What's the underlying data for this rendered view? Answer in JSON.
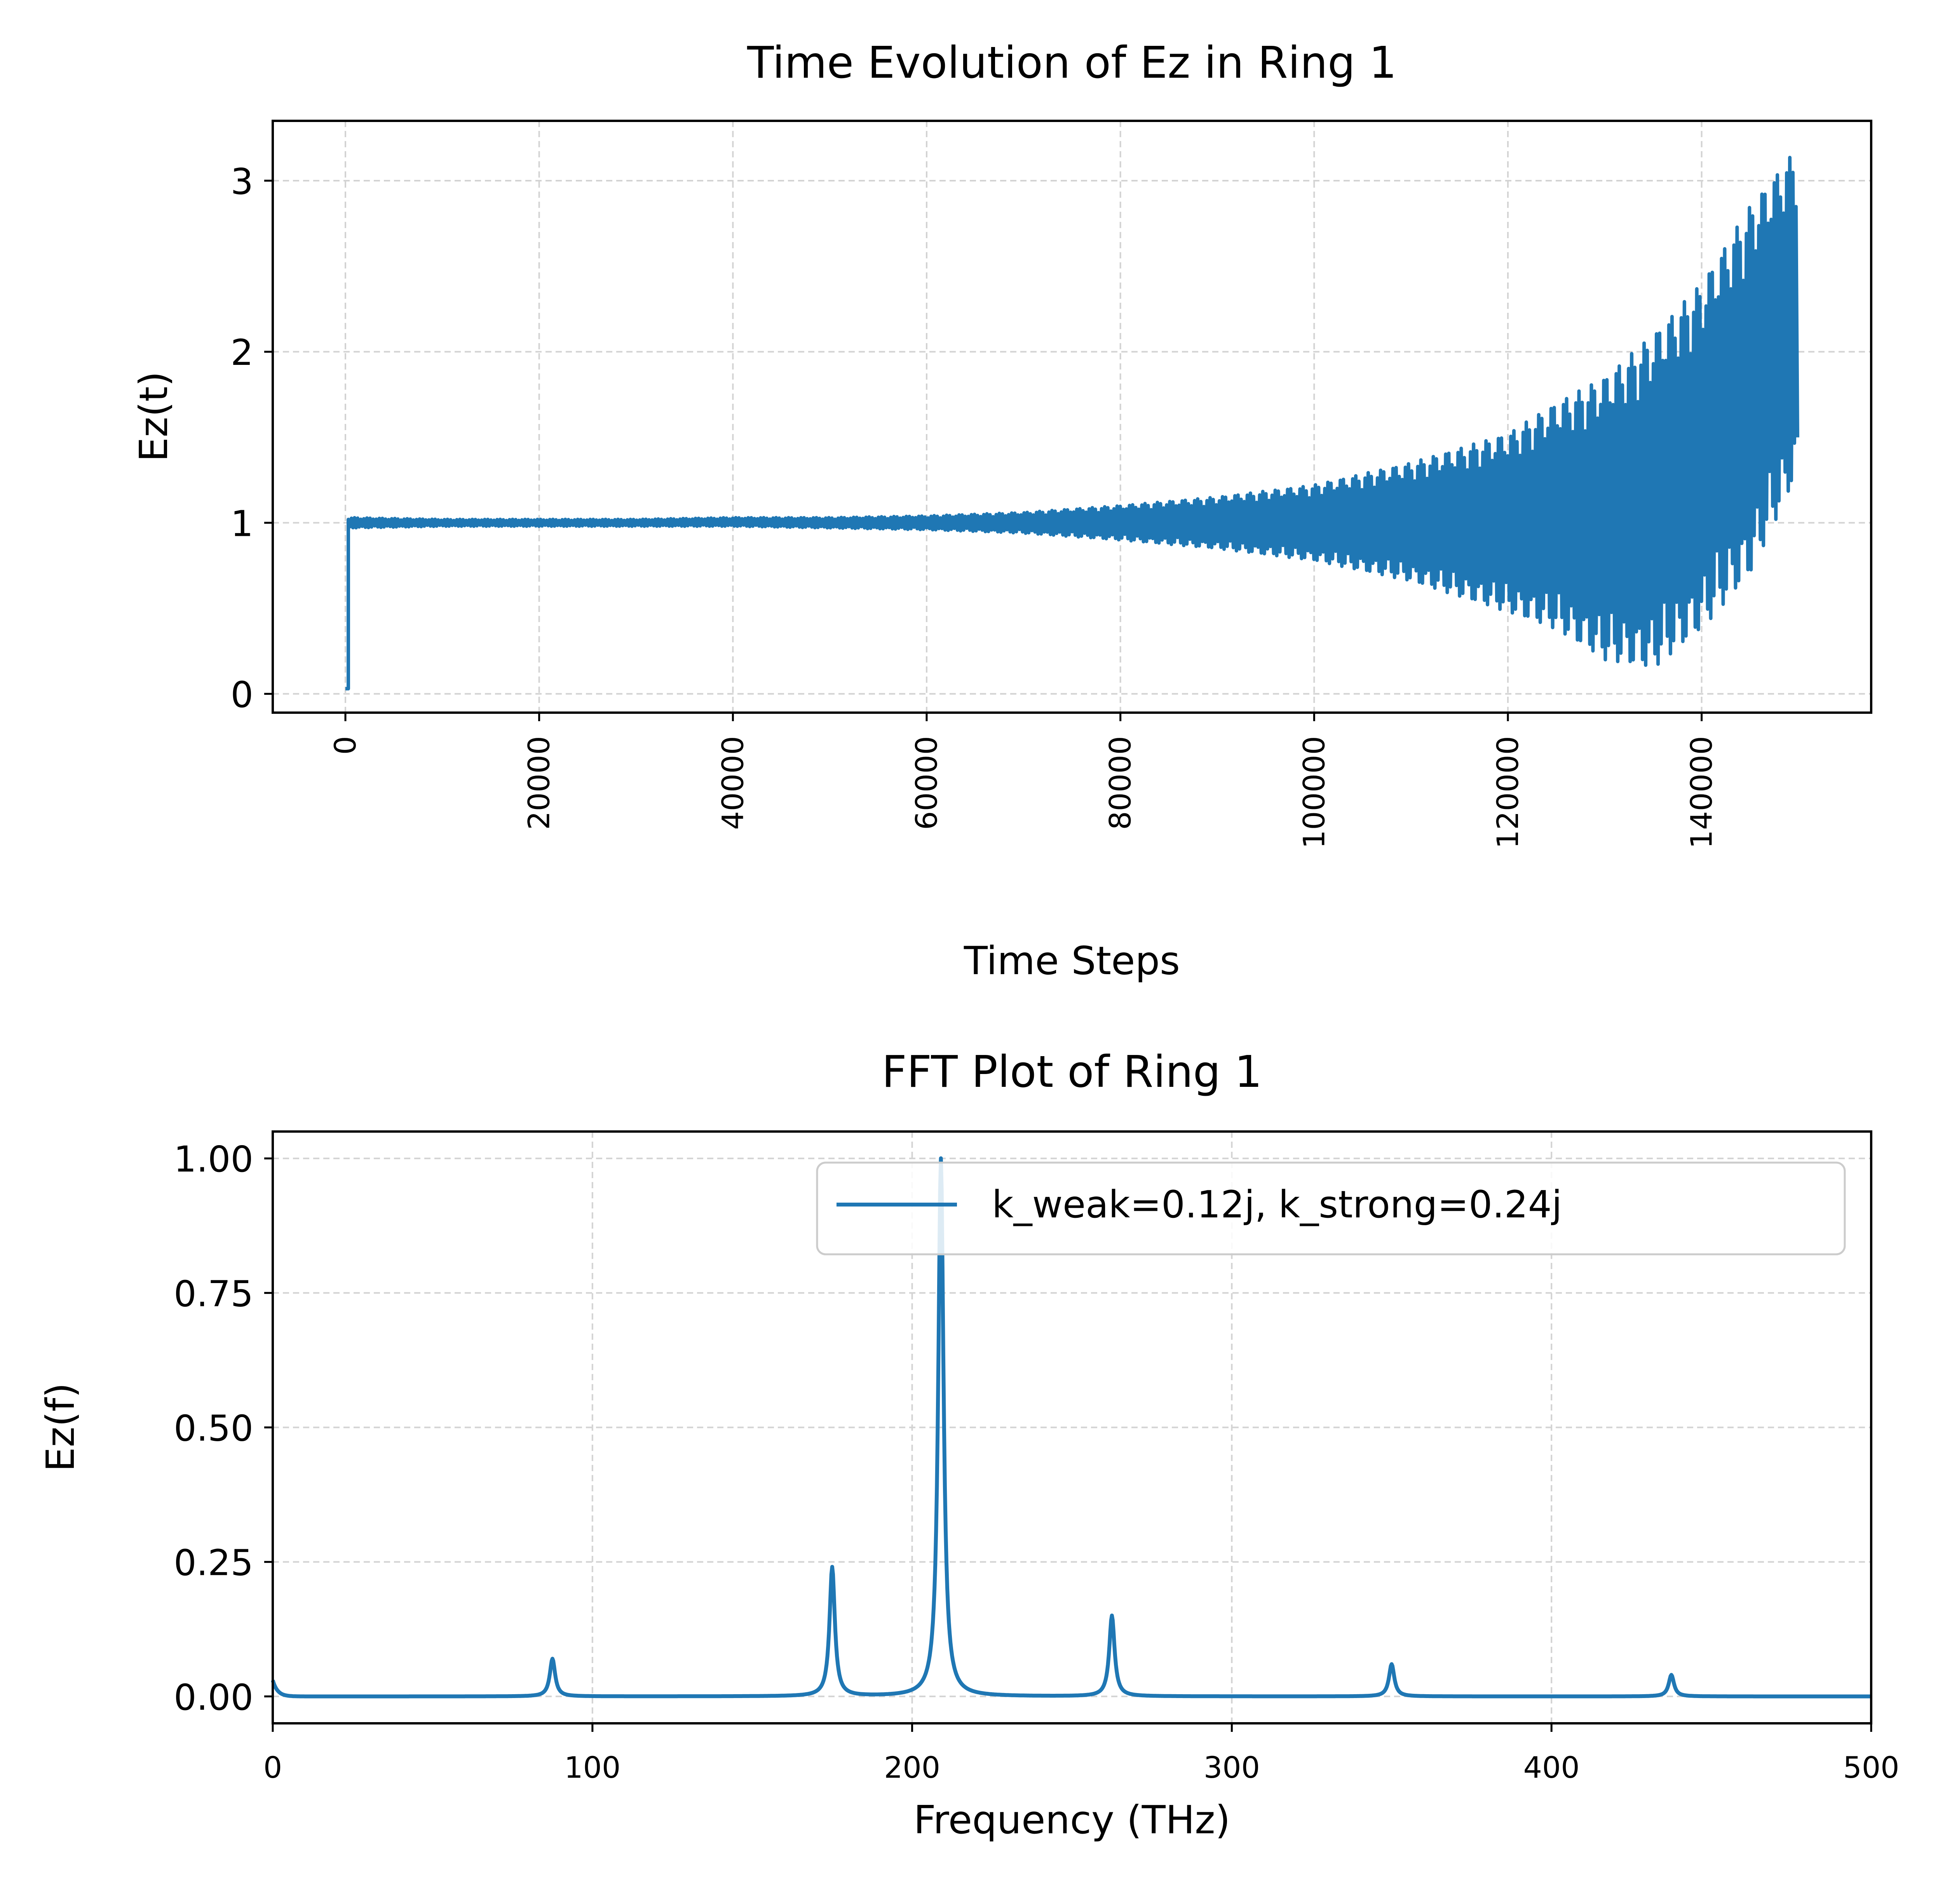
{
  "colors": {
    "series": "#1f77b4",
    "grid": "#d3d3d3",
    "axes": "#000000",
    "background": "#ffffff"
  },
  "chart_data": [
    {
      "type": "line",
      "title": "Time Evolution of Ez in Ring 1",
      "xlabel": "Time Steps",
      "ylabel": "Ez(t)",
      "xlim": [
        -7500,
        157500
      ],
      "ylim": [
        -0.11,
        3.35
      ],
      "xticks": [
        0,
        20000,
        40000,
        60000,
        80000,
        100000,
        120000,
        140000
      ],
      "xtick_labels": [
        "0",
        "20000",
        "40000",
        "60000",
        "80000",
        "100000",
        "120000",
        "140000"
      ],
      "xtick_rotation": "vertical",
      "yticks": [
        0,
        1,
        2,
        3
      ],
      "ytick_labels": [
        "0",
        "1",
        "2",
        "3"
      ],
      "grid": true,
      "series": [
        {
          "color": "#1f77b4",
          "style": "oscillating signal; lower and upper envelope given at sampled time steps",
          "x": [
            0,
            300,
            10000,
            20000,
            30000,
            40000,
            50000,
            60000,
            70000,
            80000,
            90000,
            100000,
            110000,
            120000,
            125000,
            130000,
            135000,
            140000,
            145000,
            150000
          ],
          "envelope_low": [
            0.03,
            0.97,
            0.98,
            0.98,
            0.98,
            0.98,
            0.97,
            0.96,
            0.94,
            0.9,
            0.85,
            0.78,
            0.66,
            0.48,
            0.38,
            0.2,
            0.15,
            0.38,
            0.7,
            1.3
          ],
          "envelope_high": [
            0.03,
            1.03,
            1.02,
            1.02,
            1.02,
            1.03,
            1.03,
            1.04,
            1.06,
            1.1,
            1.15,
            1.22,
            1.35,
            1.52,
            1.7,
            1.85,
            2.1,
            2.4,
            2.85,
            3.2
          ]
        }
      ]
    },
    {
      "type": "line",
      "title": "FFT Plot of Ring 1",
      "xlabel": "Frequency (THz)",
      "ylabel": "Ez(f)",
      "xlim": [
        0,
        500
      ],
      "ylim": [
        -0.05,
        1.05
      ],
      "xticks": [
        0,
        100,
        200,
        300,
        400,
        500
      ],
      "xtick_labels": [
        "0",
        "100",
        "200",
        "300",
        "400",
        "500"
      ],
      "yticks": [
        0.0,
        0.25,
        0.5,
        0.75,
        1.0
      ],
      "ytick_labels": [
        "0.00",
        "0.25",
        "0.50",
        "0.75",
        "1.00"
      ],
      "grid": true,
      "legend": {
        "entries": [
          "k_weak=0.12j, k_strong=0.24j"
        ],
        "placement": "upper right"
      },
      "series": [
        {
          "name": "k_weak=0.12j, k_strong=0.24j",
          "color": "#1f77b4",
          "baseline": 0.0,
          "edge_value_at_0": 0.03,
          "peaks": [
            {
              "x": 87.5,
              "y": 0.07
            },
            {
              "x": 175.0,
              "y": 0.24
            },
            {
              "x": 209.0,
              "y": 1.0
            },
            {
              "x": 262.5,
              "y": 0.15
            },
            {
              "x": 350.0,
              "y": 0.06
            },
            {
              "x": 437.5,
              "y": 0.04
            }
          ]
        }
      ]
    }
  ]
}
